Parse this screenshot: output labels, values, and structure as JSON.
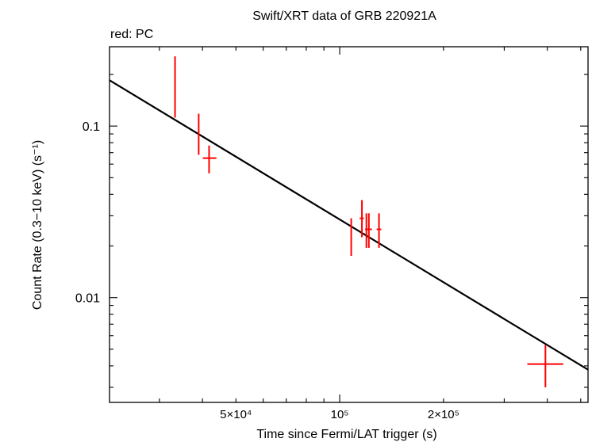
{
  "chart_data": {
    "type": "scatter",
    "title": "Swift/XRT data of GRB 220921A",
    "subtitle": "red: PC",
    "xlabel": "Time since Fermi/LAT trigger (s)",
    "ylabel": "Count Rate (0.3−10 keV) (s⁻¹)",
    "x_scale": "log",
    "y_scale": "log",
    "xlim": [
      21500,
      525000
    ],
    "ylim": [
      0.00245,
      0.29
    ],
    "x_ticks": [
      {
        "value": 50000,
        "label": "5×10⁴"
      },
      {
        "value": 100000,
        "label": "10⁵"
      },
      {
        "value": 200000,
        "label": "2×10⁵"
      }
    ],
    "y_ticks": [
      {
        "value": 0.1,
        "label": "0.1"
      },
      {
        "value": 0.01,
        "label": "0.01"
      }
    ],
    "grid": false,
    "series": [
      {
        "name": "PC",
        "color": "#ff0000",
        "points": [
          {
            "x": 33300,
            "x_lo": 33200,
            "x_hi": 33400,
            "y": 0.15,
            "y_lo": 0.112,
            "y_hi": 0.255
          },
          {
            "x": 39000,
            "x_lo": 38900,
            "x_hi": 39100,
            "y": 0.091,
            "y_lo": 0.068,
            "y_hi": 0.118
          },
          {
            "x": 41800,
            "x_lo": 40100,
            "x_hi": 43900,
            "y": 0.065,
            "y_lo": 0.053,
            "y_hi": 0.077
          },
          {
            "x": 108000,
            "x_lo": 107800,
            "x_hi": 108200,
            "y": 0.023,
            "y_lo": 0.0175,
            "y_hi": 0.029
          },
          {
            "x": 116000,
            "x_lo": 114300,
            "x_hi": 117500,
            "y": 0.029,
            "y_lo": 0.0225,
            "y_hi": 0.037
          },
          {
            "x": 119500,
            "x_lo": 118500,
            "x_hi": 120500,
            "y": 0.025,
            "y_lo": 0.0195,
            "y_hi": 0.031
          },
          {
            "x": 121500,
            "x_lo": 120000,
            "x_hi": 124000,
            "y": 0.025,
            "y_lo": 0.0195,
            "y_hi": 0.031
          },
          {
            "x": 130000,
            "x_lo": 128000,
            "x_hi": 132000,
            "y": 0.025,
            "y_lo": 0.0195,
            "y_hi": 0.031
          },
          {
            "x": 395000,
            "x_lo": 350000,
            "x_hi": 445000,
            "y": 0.0041,
            "y_lo": 0.003,
            "y_hi": 0.0053
          }
        ]
      }
    ],
    "model_line": {
      "color": "#000000",
      "points": [
        [
          21500,
          0.185
        ],
        [
          525000,
          0.0038
        ]
      ]
    }
  }
}
